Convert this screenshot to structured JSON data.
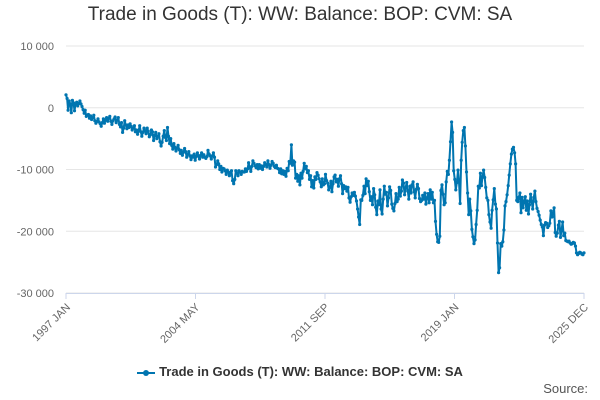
{
  "colors": {
    "series": "#0075b0",
    "grid": "#e6e6e6",
    "axis": "#ccd6eb",
    "text": "#666666"
  },
  "source_label": "Source:",
  "chart_data": {
    "type": "line",
    "title": "Trade in Goods (T): WW: Balance: BOP: CVM: SA",
    "xlabel": "",
    "ylabel": "",
    "ylim": [
      -30000,
      10000
    ],
    "y_ticks": [
      10000,
      0,
      -10000,
      -20000,
      -30000
    ],
    "y_tick_labels": [
      "10 000",
      "0",
      "-10 000",
      "-20 000",
      "-30 000"
    ],
    "x_tick_labels": [
      "1997 JAN",
      "2004 MAY",
      "2011 SEP",
      "2019 JAN",
      "2025 DEC"
    ],
    "x_range": [
      "1997 JAN",
      "2025 DEC"
    ],
    "grid": true,
    "legend": "bottom-center",
    "series": [
      {
        "name": "Trade in Goods (T): WW: Balance: BOP: CVM: SA",
        "x_start": "1997 JAN",
        "frequency": "monthly",
        "values": [
          2100,
          1500,
          -400,
          1100,
          600,
          -800,
          1200,
          800,
          -500,
          600,
          900,
          300,
          700,
          1100,
          600,
          200,
          -300,
          -900,
          -400,
          -1400,
          -1200,
          -1100,
          -1700,
          -1300,
          -1900,
          -1600,
          -1200,
          -2100,
          -2500,
          -2200,
          -1800,
          -2300,
          -2600,
          -3000,
          -2400,
          -1800,
          -2500,
          -2000,
          -1600,
          -2200,
          -1700,
          -1400,
          -2200,
          -2700,
          -2100,
          -1800,
          -1500,
          -2400,
          -2000,
          -1600,
          -2700,
          -3100,
          -2400,
          -4000,
          -3300,
          -2100,
          -2800,
          -3400,
          -2800,
          -3200,
          -2600,
          -3000,
          -3600,
          -3300,
          -2900,
          -3900,
          -3600,
          -4300,
          -3700,
          -2900,
          -3900,
          -4600,
          -4000,
          -3300,
          -3700,
          -4200,
          -3300,
          -3800,
          -4700,
          -4400,
          -3600,
          -3900,
          -5300,
          -4500,
          -4000,
          -5000,
          -4600,
          -4200,
          -5500,
          -6200,
          -5600,
          -4600,
          -3700,
          -4800,
          -5300,
          -3200,
          -4600,
          -5800,
          -5000,
          -6100,
          -6700,
          -5800,
          -6400,
          -7000,
          -6500,
          -6100,
          -6800,
          -7400,
          -6900,
          -7700,
          -7200,
          -6600,
          -7100,
          -8000,
          -7500,
          -7100,
          -7800,
          -8400,
          -7800,
          -8000,
          -7500,
          -8500,
          -7900,
          -7300,
          -7800,
          -8300,
          -7700,
          -7300,
          -8000,
          -7600,
          -8000,
          -8200,
          -7900,
          -6900,
          -7500,
          -7800,
          -8300,
          -7800,
          -7300,
          -8000,
          -9600,
          -9200,
          -8600,
          -9100,
          -10000,
          -9500,
          -10400,
          -9800,
          -9900,
          -10200,
          -10800,
          -10100,
          -10400,
          -11000,
          -10500,
          -10200,
          -11800,
          -12300,
          -11600,
          -10200,
          -10600,
          -11000,
          -10200,
          -10400,
          -10800,
          -10300,
          -10400,
          -10400,
          -9900,
          -10300,
          -9900,
          -8900,
          -9700,
          -10300,
          -9500,
          -8600,
          -9000,
          -9400,
          -9700,
          -9200,
          -9900,
          -9200,
          -9800,
          -9400,
          -10000,
          -9500,
          -8900,
          -9200,
          -9600,
          -8600,
          -9200,
          -9800,
          -9300,
          -8700,
          -9000,
          -9500,
          -9700,
          -9300,
          -9800,
          -9900,
          -10500,
          -9900,
          -10700,
          -10200,
          -10800,
          -10300,
          -11100,
          -9800,
          -10200,
          -8700,
          -9000,
          -6000,
          -9300,
          -8600,
          -8800,
          -11400,
          -10800,
          -11900,
          -11000,
          -12500,
          -10600,
          -11400,
          -10300,
          -9000,
          -9900,
          -9500,
          -10500,
          -10200,
          -11600,
          -11000,
          -12800,
          -11800,
          -13000,
          -11200,
          -11600,
          -10500,
          -10900,
          -11500,
          -12000,
          -12800,
          -11500,
          -12500,
          -12300,
          -10800,
          -11800,
          -12200,
          -13300,
          -12900,
          -11900,
          -13600,
          -12300,
          -11200,
          -10900,
          -12000,
          -11600,
          -12700,
          -11500,
          -11000,
          -12300,
          -13900,
          -12600,
          -13100,
          -12800,
          -13500,
          -12900,
          -14600,
          -15300,
          -14400,
          -13800,
          -14200,
          -13700,
          -14300,
          -15100,
          -16400,
          -17700,
          -18900,
          -14900,
          -15000,
          -14200,
          -12700,
          -13900,
          -11500,
          -12600,
          -11900,
          -13600,
          -15000,
          -14400,
          -15700,
          -13100,
          -14100,
          -16100,
          -17300,
          -15100,
          -15700,
          -13300,
          -16400,
          -17200,
          -14800,
          -12700,
          -14000,
          -13700,
          -15900,
          -14600,
          -12800,
          -13400,
          -15600,
          -16300,
          -16700,
          -15500,
          -13900,
          -15200,
          -14800,
          -12900,
          -14300,
          -13500,
          -11700,
          -12200,
          -14100,
          -13000,
          -12100,
          -13500,
          -14800,
          -12700,
          -13800,
          -12500,
          -12000,
          -13600,
          -14600,
          -13200,
          -12400,
          -13100,
          -14700,
          -15200,
          -15000,
          -14200,
          -14800,
          -13800,
          -15600,
          -14600,
          -13900,
          -15400,
          -13300,
          -14800,
          -13700,
          -15400,
          -15000,
          -18400,
          -20500,
          -21700,
          -21800,
          -20800,
          -13400,
          -12500,
          -14000,
          -15700,
          -15400,
          -12000,
          -10300,
          -10800,
          -8500,
          -5500,
          -2300,
          -4000,
          -10200,
          -11600,
          -13300,
          -12100,
          -10100,
          -12000,
          -15500,
          -8500,
          -5600,
          -3700,
          -3200,
          -6200,
          -10400,
          -13800,
          -17300,
          -14800,
          -16700,
          -19700,
          -20900,
          -22000,
          -21400,
          -18900,
          -16600,
          -12700,
          -13000,
          -10600,
          -12600,
          -11200,
          -10100,
          -11300,
          -12900,
          -14600,
          -15000,
          -17300,
          -18500,
          -19500,
          -16600,
          -14900,
          -13100,
          -15600,
          -16400,
          -21900,
          -26700,
          -25900,
          -22000,
          -22400,
          -21700,
          -19800,
          -15900,
          -15200,
          -14100,
          -12600,
          -10900,
          -9100,
          -7500,
          -6700,
          -6400,
          -7300,
          -9100,
          -15000,
          -15200,
          -14500,
          -13800,
          -17000,
          -14500,
          -16200,
          -15100,
          -14400,
          -16600,
          -15100,
          -17200,
          -15700,
          -14000,
          -15200,
          -16400,
          -14500,
          -13500,
          -15200,
          -16300,
          -16800,
          -17400,
          -18200,
          -18900,
          -19300,
          -20700,
          -19000,
          -18600,
          -18700,
          -19400,
          -19100,
          -18700,
          -16700,
          -17700,
          -17100,
          -16200,
          -20200,
          -20800,
          -20300,
          -19000,
          -18400,
          -21000,
          -19800,
          -18500,
          -20700,
          -20300,
          -21500,
          -21600,
          -21700,
          -21600,
          -21900,
          -22100,
          -22000,
          -21800,
          -21900,
          -22400,
          -23500,
          -23800,
          -23600,
          -23400,
          -23500,
          -23700,
          -23800,
          -23500
        ]
      }
    ]
  }
}
